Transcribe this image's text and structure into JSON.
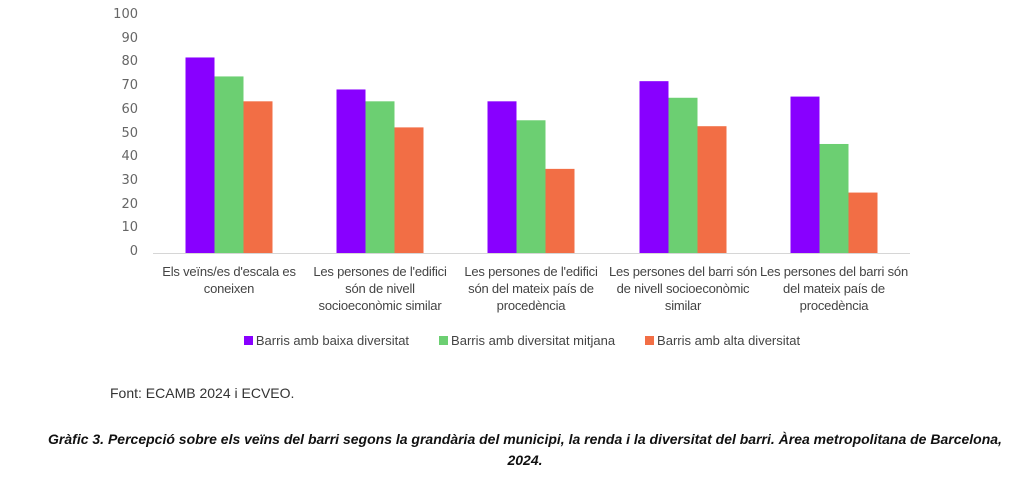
{
  "chart_data": {
    "type": "bar",
    "title": "",
    "xlabel": "",
    "ylabel": "",
    "ylim": [
      0,
      100
    ],
    "yticks": [
      "0",
      "10",
      "20",
      "30",
      "40",
      "50",
      "60",
      "70",
      "80",
      "90",
      "100"
    ],
    "grid": false,
    "legend_position": "bottom",
    "categories": [
      "Els veïns/es d'escala es coneixen",
      "Les persones de l'edifici són de nivell socioeconòmic similar",
      "Les persones de l'edifici són del mateix país de procedència",
      "Les persones del barri són de nivell socioeconòmic similar",
      "Les persones del barri són del mateix país de procedència"
    ],
    "series": [
      {
        "name": "Barris amb baixa diversitat",
        "color": "#8800ff",
        "values": [
          82.5,
          69,
          64,
          72.5,
          66
        ]
      },
      {
        "name": "Barris amb diversitat mitjana",
        "color": "#6ccf72",
        "values": [
          74.5,
          64,
          56,
          65.5,
          46
        ]
      },
      {
        "name": "Barris amb alta diversitat",
        "color": "#f26e45",
        "values": [
          64,
          53,
          35.5,
          53.5,
          25.5
        ]
      }
    ]
  },
  "source": "Font: ECAMB 2024 i ECVEO.",
  "caption": "Gràfic 3. Percepció sobre els veïns del barri segons la grandària del municipi, la renda i la diversitat del barri. Àrea metropolitana de Barcelona, 2024."
}
